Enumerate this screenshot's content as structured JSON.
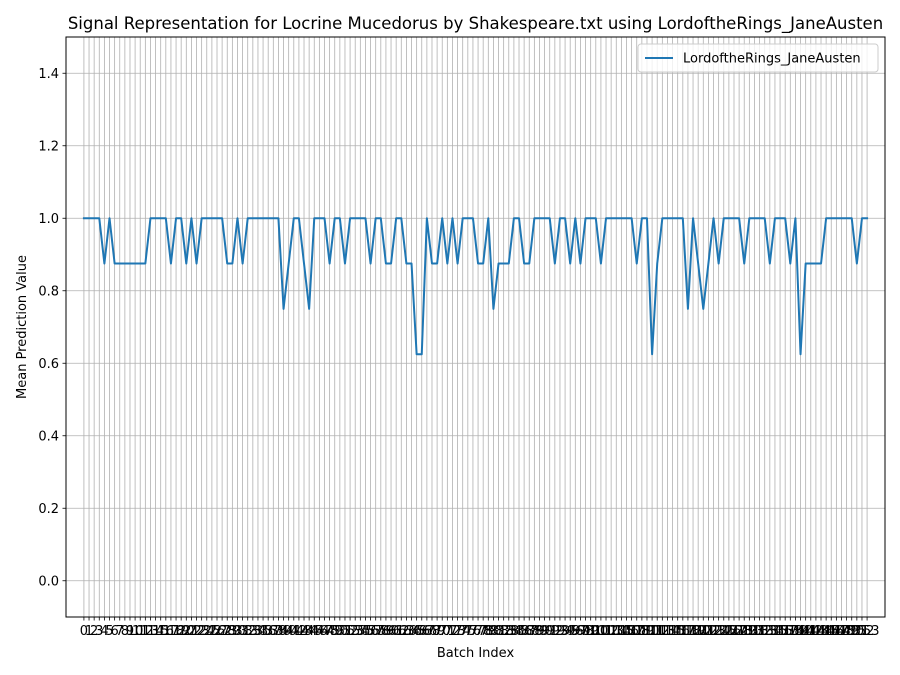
{
  "chart_data": {
    "type": "line",
    "title": "Signal Representation for Locrine Mucedorus by Shakespeare.txt using LordoftheRings_JaneAusten",
    "xlabel": "Batch Index",
    "ylabel": "Mean Prediction Value",
    "xlim": [
      -3.5,
      156.5
    ],
    "ylim": [
      -0.1,
      1.5
    ],
    "grid": true,
    "legend_position": "top-right",
    "y_ticks": [
      "0.0",
      "0.2",
      "0.4",
      "0.6",
      "0.8",
      "1.0",
      "1.2",
      "1.4"
    ],
    "x_tick_count": 154,
    "series": [
      {
        "name": "LordoftheRings_JaneAusten",
        "color": "#1f77b4",
        "values": [
          1.0,
          1.0,
          1.0,
          1.0,
          0.875,
          1.0,
          0.875,
          0.875,
          0.875,
          0.875,
          0.875,
          0.875,
          0.875,
          1.0,
          1.0,
          1.0,
          1.0,
          0.875,
          1.0,
          1.0,
          0.875,
          1.0,
          0.875,
          1.0,
          1.0,
          1.0,
          1.0,
          1.0,
          0.875,
          0.875,
          1.0,
          0.875,
          1.0,
          1.0,
          1.0,
          1.0,
          1.0,
          1.0,
          1.0,
          0.75,
          0.875,
          1.0,
          1.0,
          0.875,
          0.75,
          1.0,
          1.0,
          1.0,
          0.875,
          1.0,
          1.0,
          0.875,
          1.0,
          1.0,
          1.0,
          1.0,
          0.875,
          1.0,
          1.0,
          0.875,
          0.875,
          1.0,
          1.0,
          0.875,
          0.875,
          0.625,
          0.625,
          1.0,
          0.875,
          0.875,
          1.0,
          0.875,
          1.0,
          0.875,
          1.0,
          1.0,
          1.0,
          0.875,
          0.875,
          1.0,
          0.75,
          0.875,
          0.875,
          0.875,
          1.0,
          1.0,
          0.875,
          0.875,
          1.0,
          1.0,
          1.0,
          1.0,
          0.875,
          1.0,
          1.0,
          0.875,
          1.0,
          0.875,
          1.0,
          1.0,
          1.0,
          0.875,
          1.0,
          1.0,
          1.0,
          1.0,
          1.0,
          1.0,
          0.875,
          1.0,
          1.0,
          0.625,
          0.875,
          1.0,
          1.0,
          1.0,
          1.0,
          1.0,
          0.75,
          1.0,
          0.875,
          0.75,
          0.875,
          1.0,
          0.875,
          1.0,
          1.0,
          1.0,
          1.0,
          0.875,
          1.0,
          1.0,
          1.0,
          1.0,
          0.875,
          1.0,
          1.0,
          1.0,
          0.875,
          1.0,
          0.625,
          0.875,
          0.875,
          0.875,
          0.875,
          1.0,
          1.0,
          1.0,
          1.0,
          1.0,
          1.0,
          0.875,
          1.0,
          1.0
        ]
      }
    ]
  }
}
